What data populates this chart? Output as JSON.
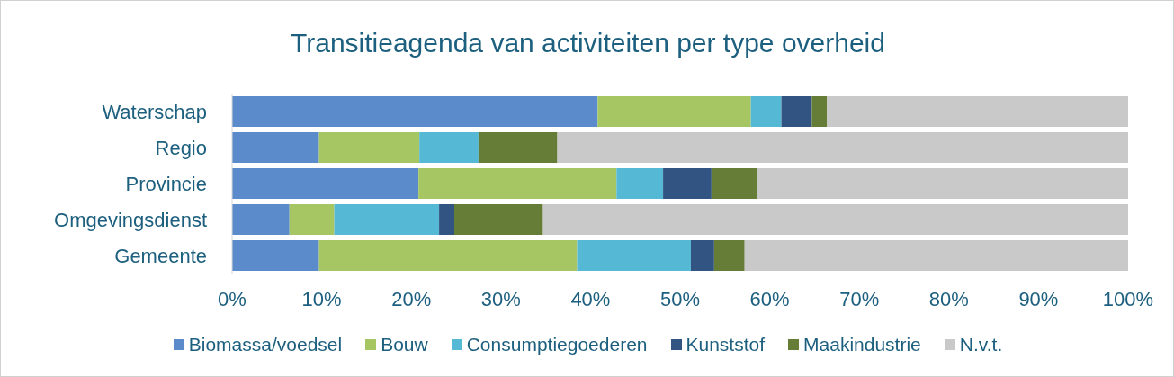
{
  "chart_data": {
    "type": "bar",
    "title": "Transitieagenda van activiteiten per type overheid",
    "orientation": "horizontal",
    "stacked": true,
    "categories": [
      "Waterschap",
      "Regio",
      "Provincie",
      "Omgevingsdienst",
      "Gemeente"
    ],
    "series": [
      {
        "name": "Biomassa/voedsel",
        "color": "#5b8bcb",
        "values": [
          40.8,
          9.7,
          20.8,
          6.4,
          9.7
        ]
      },
      {
        "name": "Bouw",
        "color": "#a5c663",
        "values": [
          17.1,
          11.2,
          22.1,
          5.0,
          28.8
        ]
      },
      {
        "name": "Consumptiegoederen",
        "color": "#55b8d4",
        "values": [
          3.4,
          6.6,
          5.2,
          11.7,
          12.7
        ]
      },
      {
        "name": "Kunststof",
        "color": "#325482",
        "values": [
          3.4,
          0,
          5.4,
          1.7,
          2.6
        ]
      },
      {
        "name": "Maakindustrie",
        "color": "#667d37",
        "values": [
          1.7,
          8.8,
          5.1,
          9.9,
          3.4
        ]
      },
      {
        "name": "N.v.t.",
        "color": "#c9c9c9",
        "values": [
          33.6,
          63.7,
          41.4,
          65.3,
          42.8
        ]
      }
    ],
    "xlim": [
      0,
      100
    ],
    "xticks": [
      {
        "value": 0,
        "label": "0%"
      },
      {
        "value": 10,
        "label": "10%"
      },
      {
        "value": 20,
        "label": "20%"
      },
      {
        "value": 30,
        "label": "30%"
      },
      {
        "value": 40,
        "label": "40%"
      },
      {
        "value": 50,
        "label": "50%"
      },
      {
        "value": 60,
        "label": "60%"
      },
      {
        "value": 70,
        "label": "70%"
      },
      {
        "value": 80,
        "label": "80%"
      },
      {
        "value": 90,
        "label": "90%"
      },
      {
        "value": 100,
        "label": "100%"
      }
    ],
    "grid": false,
    "legend": "bottom"
  }
}
